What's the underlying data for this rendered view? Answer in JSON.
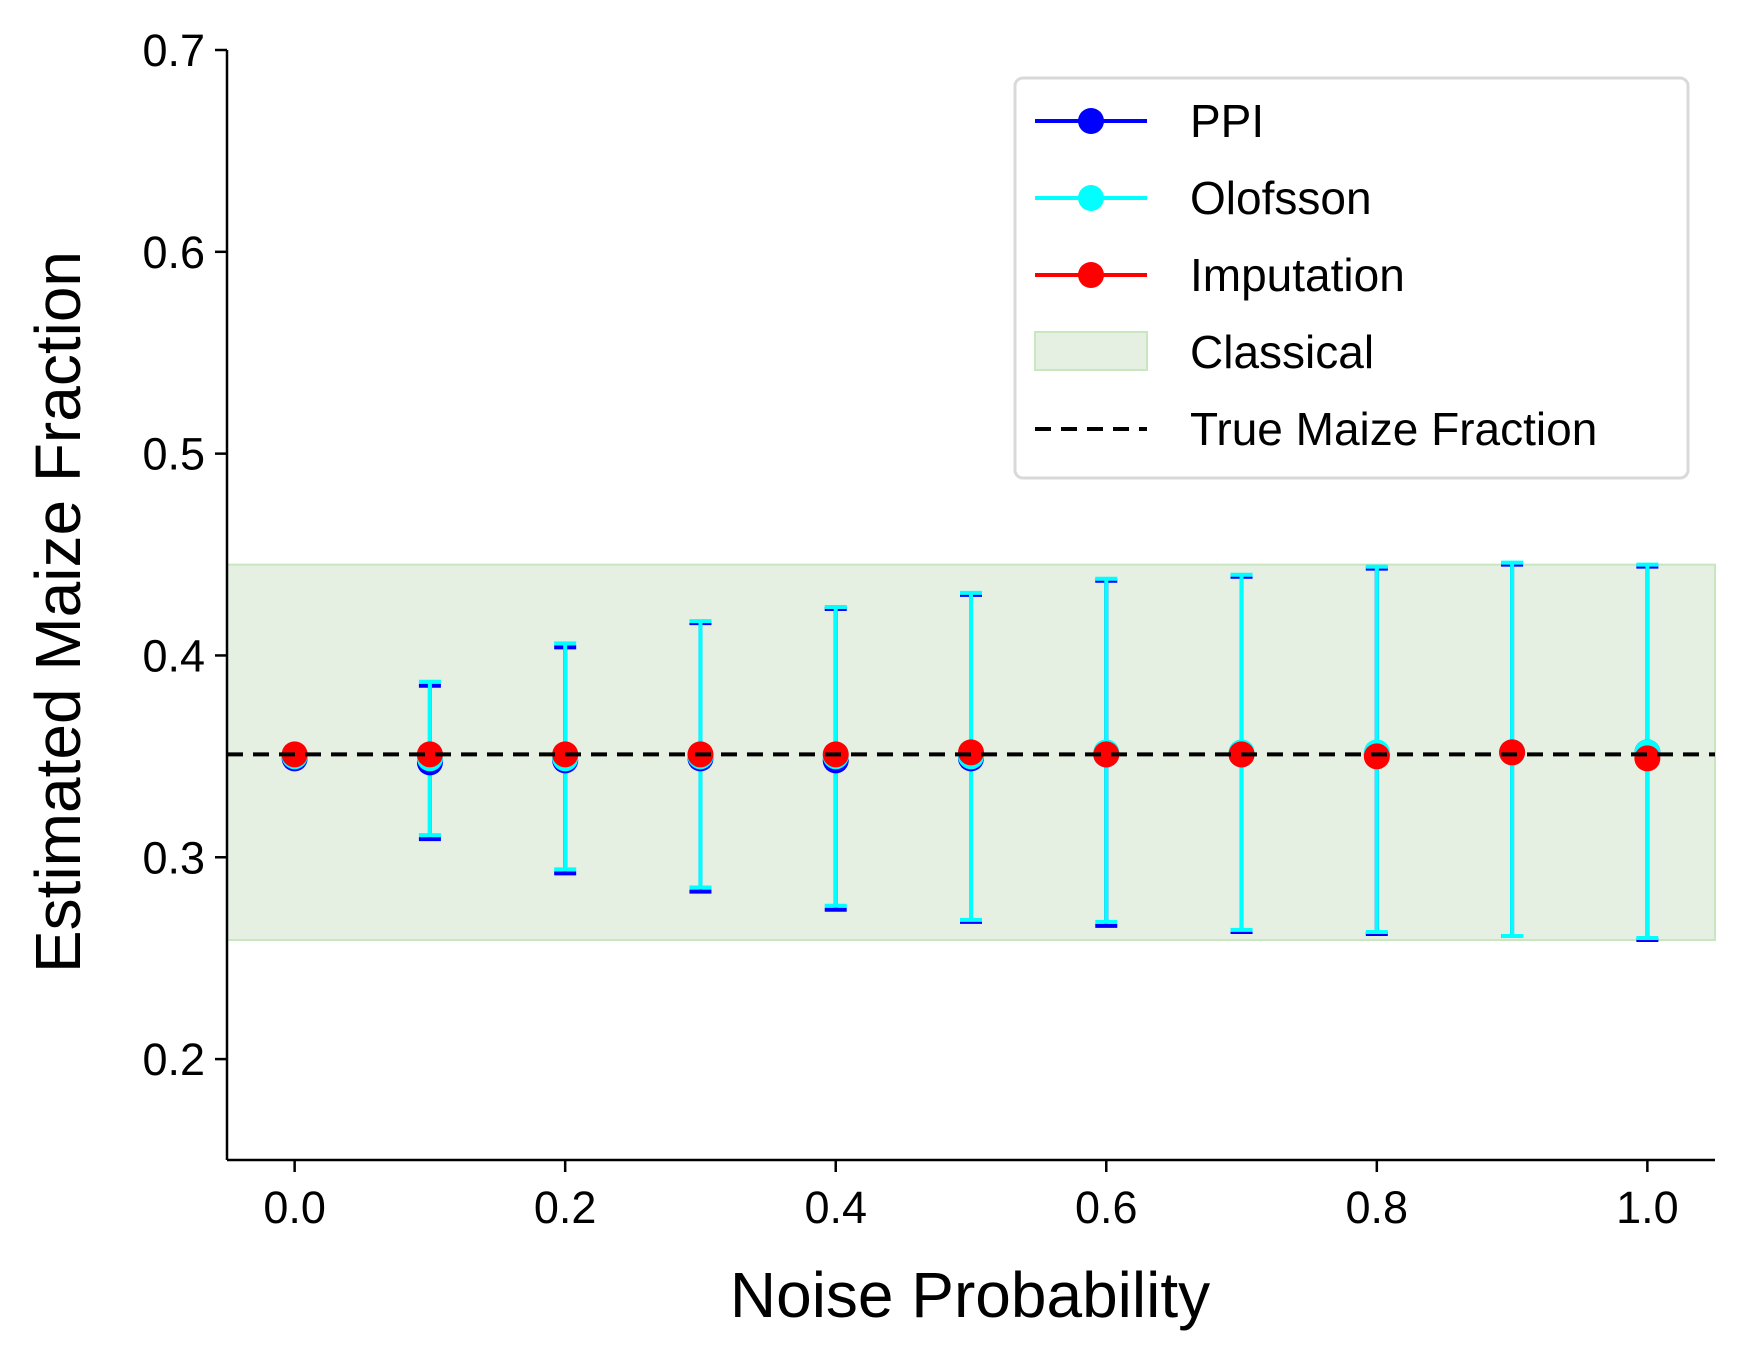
{
  "chart_data": {
    "type": "scatter",
    "title": "",
    "xlabel": "Noise Probability",
    "ylabel": "Estimated Maize Fraction",
    "xlim": [
      -0.05,
      1.05
    ],
    "ylim": [
      0.15,
      0.7
    ],
    "x_ticks": [
      "0.0",
      "0.2",
      "0.4",
      "0.6",
      "0.8",
      "1.0"
    ],
    "y_ticks": [
      "0.2",
      "0.3",
      "0.4",
      "0.5",
      "0.6",
      "0.7"
    ],
    "grid": false,
    "legend_position": "upper right",
    "x": [
      0.0,
      0.1,
      0.2,
      0.3,
      0.4,
      0.5,
      0.6,
      0.7,
      0.8,
      0.9,
      1.0
    ],
    "series": [
      {
        "name": "PPI",
        "color": "#0000ff",
        "kind": "errorbar",
        "values": [
          0.349,
          0.347,
          0.348,
          0.349,
          0.348,
          0.349,
          0.351,
          0.351,
          0.351,
          0.352,
          0.352
        ],
        "lower": [
          0.349,
          0.309,
          0.292,
          0.283,
          0.274,
          0.268,
          0.266,
          0.263,
          0.262,
          0.261,
          0.259
        ],
        "upper": [
          0.349,
          0.385,
          0.404,
          0.416,
          0.423,
          0.43,
          0.437,
          0.439,
          0.443,
          0.445,
          0.444
        ]
      },
      {
        "name": "Olofsson",
        "color": "#00ffff",
        "kind": "errorbar",
        "values": [
          0.35,
          0.349,
          0.349,
          0.35,
          0.35,
          0.35,
          0.352,
          0.352,
          0.352,
          0.352,
          0.352
        ],
        "lower": [
          0.35,
          0.311,
          0.294,
          0.285,
          0.276,
          0.269,
          0.268,
          0.264,
          0.263,
          0.261,
          0.26
        ],
        "upper": [
          0.35,
          0.387,
          0.406,
          0.417,
          0.424,
          0.431,
          0.438,
          0.44,
          0.444,
          0.446,
          0.445
        ]
      },
      {
        "name": "Imputation",
        "color": "#ff0000",
        "kind": "point",
        "values": [
          0.351,
          0.351,
          0.351,
          0.351,
          0.351,
          0.352,
          0.351,
          0.351,
          0.35,
          0.352,
          0.349
        ]
      }
    ],
    "classical_band": {
      "name": "Classical",
      "lower": 0.259,
      "upper": 0.445,
      "color": "#e5f0e3"
    },
    "true_line": {
      "name": "True Maize Fraction",
      "value": 0.351,
      "color": "#000000"
    }
  }
}
